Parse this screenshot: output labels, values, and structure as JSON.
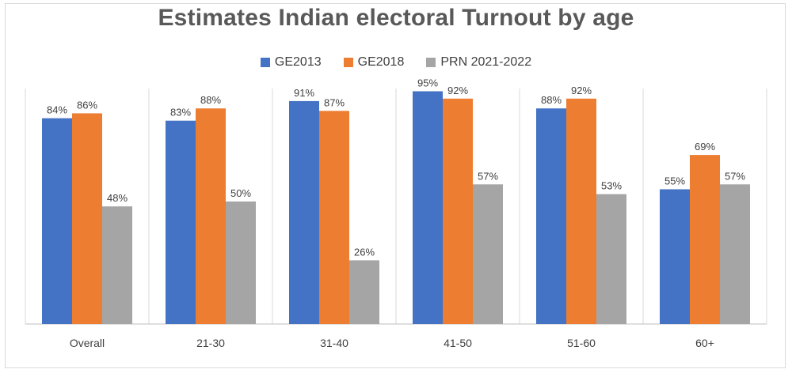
{
  "chart_data": {
    "type": "bar",
    "title": "Estimates Indian electoral Turnout by age",
    "categories": [
      "Overall",
      "21-30",
      "31-40",
      "41-50",
      "51-60",
      "60+"
    ],
    "series": [
      {
        "name": "GE2013",
        "color": "#4472C4",
        "values": [
          84,
          83,
          91,
          95,
          88,
          55
        ],
        "labels": [
          "84%",
          "83%",
          "91%",
          "95%",
          "88%",
          "55%"
        ]
      },
      {
        "name": "GE2018",
        "color": "#ED7D31",
        "values": [
          86,
          88,
          87,
          92,
          92,
          69
        ],
        "labels": [
          "86%",
          "88%",
          "87%",
          "92%",
          "92%",
          "69%"
        ]
      },
      {
        "name": "PRN 2021-2022",
        "color": "#A5A5A5",
        "values": [
          48,
          50,
          26,
          57,
          53,
          57
        ],
        "labels": [
          "48%",
          "50%",
          "26%",
          "57%",
          "53%",
          "57%"
        ]
      }
    ],
    "ylim": [
      0,
      100
    ],
    "grid": false,
    "legend_position": "top"
  }
}
